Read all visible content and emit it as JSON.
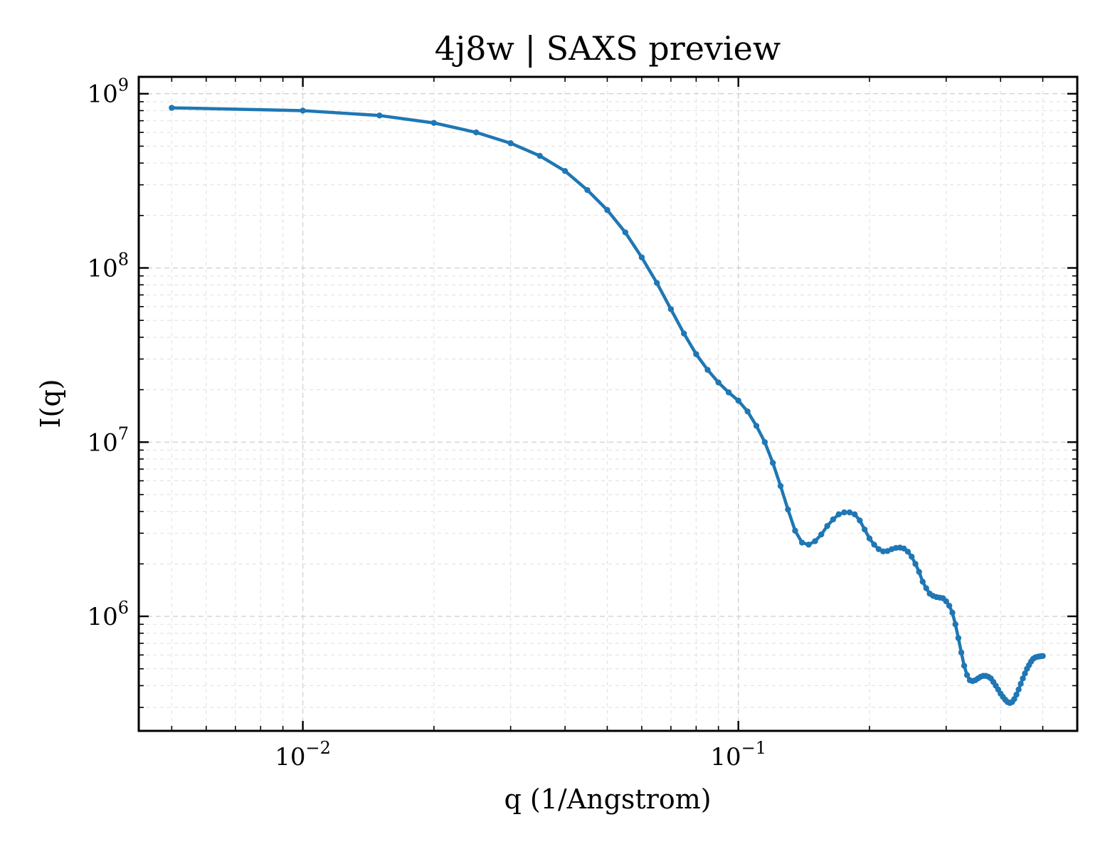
{
  "chart_data": {
    "type": "line",
    "title": "4j8w | SAXS preview",
    "xlabel": "q (1/Angstrom)",
    "ylabel": "I(q)",
    "xscale": "log",
    "yscale": "log",
    "xlim": [
      0.0042,
      0.6
    ],
    "ylim": [
      220000,
      1250000000
    ],
    "grid": true,
    "x_ticks": [
      {
        "value": 0.01,
        "base": "10",
        "exp": "−2"
      },
      {
        "value": 0.1,
        "base": "10",
        "exp": "−1"
      }
    ],
    "y_ticks": [
      {
        "value": 1000000,
        "base": "10",
        "exp": "6"
      },
      {
        "value": 10000000,
        "base": "10",
        "exp": "7"
      },
      {
        "value": 100000000,
        "base": "10",
        "exp": "8"
      },
      {
        "value": 1000000000,
        "base": "10",
        "exp": "9"
      }
    ],
    "series": [
      {
        "color": "#1f77b4",
        "x": [
          0.005,
          0.01,
          0.015,
          0.02,
          0.025,
          0.03,
          0.035,
          0.04,
          0.045,
          0.05,
          0.055,
          0.06,
          0.065,
          0.07,
          0.075,
          0.08,
          0.085,
          0.09,
          0.095,
          0.1,
          0.105,
          0.11,
          0.115,
          0.12,
          0.125,
          0.13,
          0.135,
          0.14,
          0.145,
          0.15,
          0.155,
          0.16,
          0.165,
          0.17,
          0.175,
          0.18,
          0.185,
          0.19,
          0.195,
          0.2,
          0.205,
          0.21,
          0.215,
          0.22,
          0.225,
          0.23,
          0.235,
          0.24,
          0.245,
          0.25,
          0.255,
          0.26,
          0.265,
          0.27,
          0.275,
          0.28,
          0.285,
          0.29,
          0.295,
          0.3,
          0.305,
          0.31,
          0.315,
          0.32,
          0.325,
          0.33,
          0.335,
          0.34,
          0.345,
          0.35,
          0.355,
          0.36,
          0.365,
          0.37,
          0.375,
          0.38,
          0.385,
          0.39,
          0.395,
          0.4,
          0.405,
          0.41,
          0.415,
          0.42,
          0.425,
          0.43,
          0.435,
          0.44,
          0.445,
          0.45,
          0.455,
          0.46,
          0.465,
          0.47,
          0.475,
          0.48,
          0.485,
          0.49,
          0.495,
          0.5
        ],
        "y": [
          830000000,
          800000000,
          750000000,
          680000000,
          600000000,
          520000000,
          440000000,
          360000000,
          280000000,
          215000000,
          160000000,
          115000000,
          82000000,
          58000000,
          42000000,
          32000000,
          26000000,
          22000000,
          19300000,
          17300000,
          15000000,
          12400000,
          10000000,
          7600000,
          5600000,
          4100000,
          3100000,
          2650000,
          2580000,
          2700000,
          2950000,
          3300000,
          3600000,
          3850000,
          3950000,
          3950000,
          3850000,
          3550000,
          3150000,
          2800000,
          2580000,
          2430000,
          2360000,
          2370000,
          2430000,
          2470000,
          2480000,
          2450000,
          2350000,
          2200000,
          2000000,
          1800000,
          1580000,
          1450000,
          1350000,
          1310000,
          1290000,
          1280000,
          1270000,
          1220000,
          1150000,
          1050000,
          900000,
          750000,
          620000,
          520000,
          460000,
          430000,
          425000,
          430000,
          440000,
          450000,
          455000,
          455000,
          450000,
          440000,
          420000,
          400000,
          380000,
          360000,
          345000,
          332000,
          322000,
          318000,
          322000,
          335000,
          355000,
          380000,
          410000,
          440000,
          470000,
          500000,
          525000,
          550000,
          570000,
          580000,
          585000,
          588000,
          590000,
          592000
        ]
      }
    ]
  }
}
